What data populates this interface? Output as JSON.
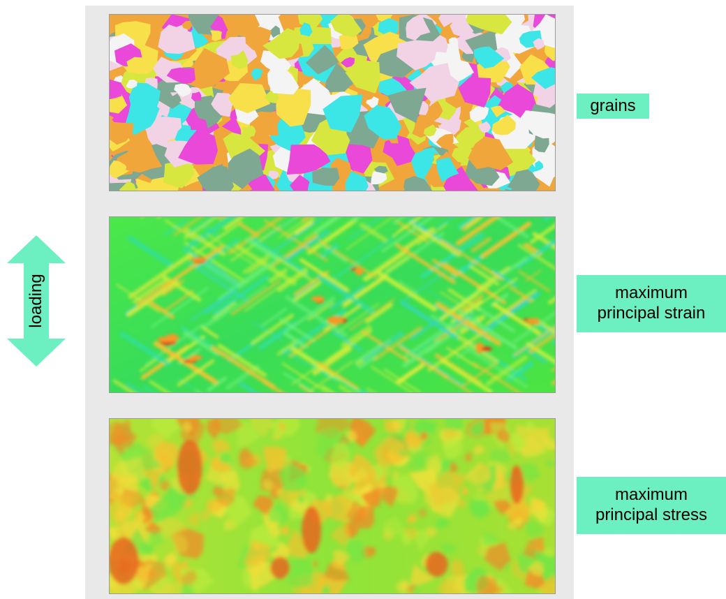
{
  "labels": {
    "grains": "grains",
    "strain_line1": "maximum",
    "strain_line2": "principal strain",
    "stress_line1": "maximum",
    "stress_line2": "principal stress",
    "loading": "loading"
  },
  "colors": {
    "label_background": "#6cf0c2",
    "arrow": "#6cf0c2",
    "backdrop": "#e9e9e9",
    "grain_palette": [
      "#f0a63a",
      "#f7e04a",
      "#3de6e6",
      "#e948d8",
      "#f4f4f4",
      "#7fa892",
      "#f2d3e6",
      "#d8e640"
    ],
    "strain_base": "#3ee14a",
    "stress_base": "#8ee438"
  },
  "icons": {
    "loading_arrow": "double-vertical-arrow-icon"
  }
}
